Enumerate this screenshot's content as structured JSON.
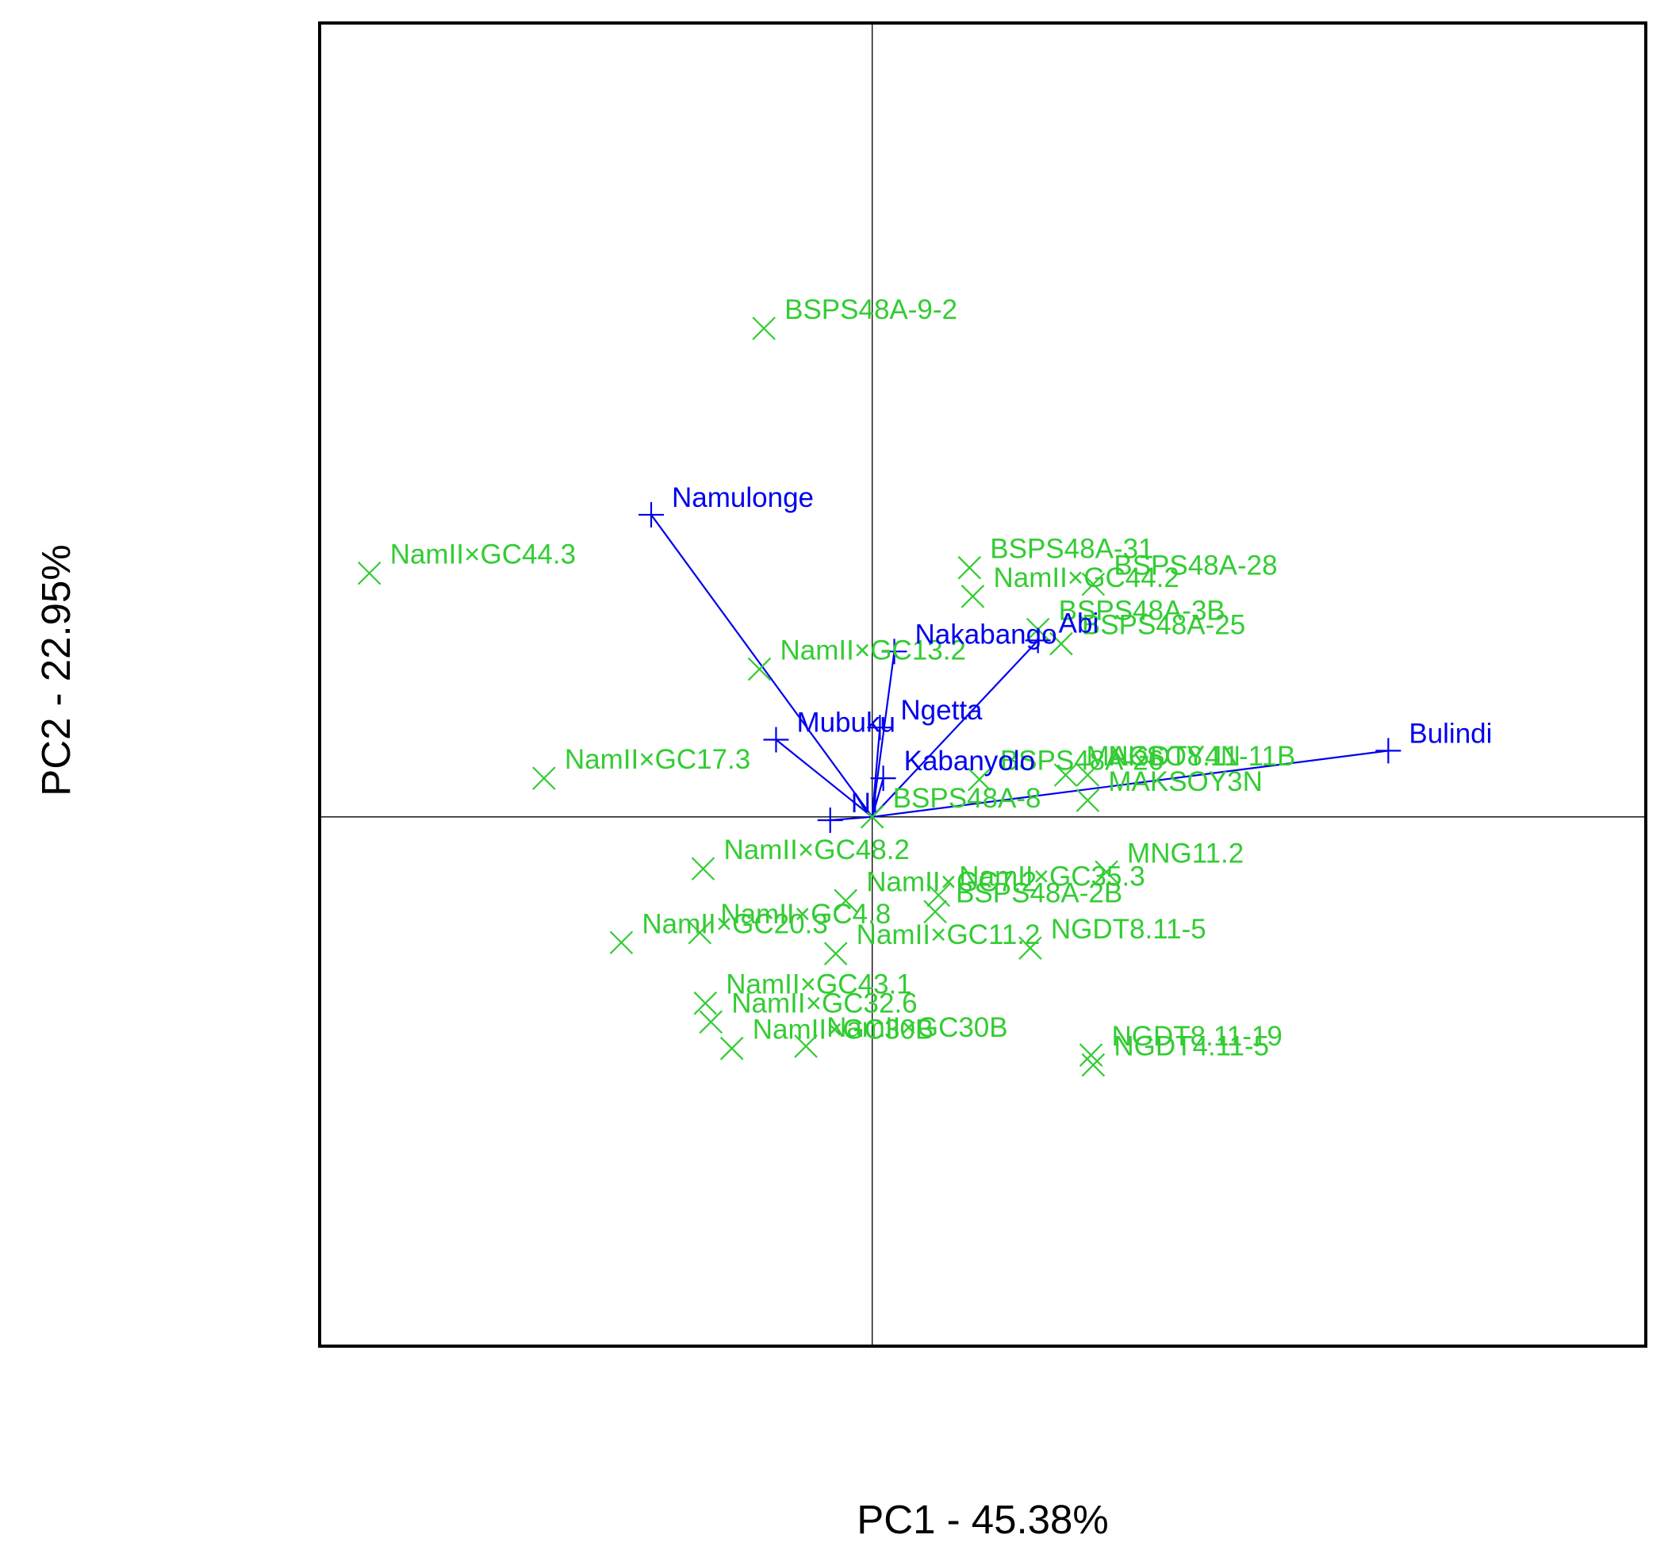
{
  "colors": {
    "genotype": "#33cc33",
    "environment": "#0000ee",
    "frame": "#000000",
    "origin_lines": "#000000"
  },
  "chart_data": {
    "type": "scatter",
    "subtype": "biplot",
    "title": "",
    "xlabel": "PC1 - 45.38%",
    "ylabel": "PC2 - 22.95%",
    "xlim": [
      -5.0,
      7.0
    ],
    "ylim": [
      -4.8,
      7.2
    ],
    "grid": false,
    "reference_lines": {
      "x": 0,
      "y": 0
    },
    "legend": "none",
    "series": [
      {
        "marker": "x",
        "color": "#33cc33",
        "points": [
          {
            "label": "BSPS48A-9-2",
            "x": -0.98,
            "y": 4.43
          },
          {
            "label": "NamII×GC44.3",
            "x": -4.55,
            "y": 2.21
          },
          {
            "label": "BSPS48A-31",
            "x": 0.88,
            "y": 2.26
          },
          {
            "label": "BSPS48A-28",
            "x": 2.0,
            "y": 2.11
          },
          {
            "label": "NamII×GC44.2",
            "x": 0.91,
            "y": 2.0
          },
          {
            "label": "BSPS48A-3B",
            "x": 1.5,
            "y": 1.7
          },
          {
            "label": "BSPS48A-25",
            "x": 1.71,
            "y": 1.57
          },
          {
            "label": "NamII×GC13.2",
            "x": -1.02,
            "y": 1.34
          },
          {
            "label": "NamII×GC17.3",
            "x": -2.97,
            "y": 0.35
          },
          {
            "label": "MAKSOY4N",
            "x": 1.75,
            "y": 0.38
          },
          {
            "label": "NGDT8.11-11B",
            "x": 1.95,
            "y": 0.38
          },
          {
            "label": "BSPS48A-26",
            "x": 0.97,
            "y": 0.34
          },
          {
            "label": "MAKSOY3N",
            "x": 1.95,
            "y": 0.15
          },
          {
            "label": "BSPS48A-8",
            "x": 0.0,
            "y": 0.0
          },
          {
            "label": "NamII×GC48.2",
            "x": -1.53,
            "y": -0.47
          },
          {
            "label": "MNG11.2",
            "x": 2.12,
            "y": -0.5
          },
          {
            "label": "NamII×GC35.3",
            "x": 0.6,
            "y": -0.71
          },
          {
            "label": "NamII×GC7.2",
            "x": -0.24,
            "y": -0.76
          },
          {
            "label": "BSPS48A-2B",
            "x": 0.57,
            "y": -0.86
          },
          {
            "label": "NamII×GC4.8",
            "x": -1.56,
            "y": -1.05
          },
          {
            "label": "NamII×GC11.2",
            "x": -0.33,
            "y": -1.24
          },
          {
            "label": "NGDT8.11-5",
            "x": 1.43,
            "y": -1.19
          },
          {
            "label": "NamII×GC20.3",
            "x": -2.27,
            "y": -1.14
          },
          {
            "label": "NamII×GC43.1",
            "x": -1.51,
            "y": -1.69
          },
          {
            "label": "NamII×GC32.6",
            "x": -1.46,
            "y": -1.86
          },
          {
            "label": "NamII×GC30B",
            "x": -1.27,
            "y": -2.1
          },
          {
            "label": "NamII×GC30B",
            "x": -0.6,
            "y": -2.08
          },
          {
            "label": "NGDT8.11-19",
            "x": 1.98,
            "y": -2.16
          },
          {
            "label": "NGDT4.11-5",
            "x": 2.0,
            "y": -2.25
          }
        ]
      },
      {
        "marker": "+",
        "color": "#0000ee",
        "vectors": true,
        "points": [
          {
            "label": "Namulonge",
            "x": -2.0,
            "y": 2.74
          },
          {
            "label": "Abi",
            "x": 1.5,
            "y": 1.6
          },
          {
            "label": "Nakabango",
            "x": 0.2,
            "y": 1.5
          },
          {
            "label": "Ngetta",
            "x": 0.07,
            "y": 0.81
          },
          {
            "label": "Mubuku",
            "x": -0.87,
            "y": 0.7
          },
          {
            "label": "Kabanyolo",
            "x": 0.1,
            "y": 0.35
          },
          {
            "label": "NI",
            "x": -0.38,
            "y": -0.03
          },
          {
            "label": "Bulindi",
            "x": 4.67,
            "y": 0.6
          }
        ]
      }
    ]
  }
}
